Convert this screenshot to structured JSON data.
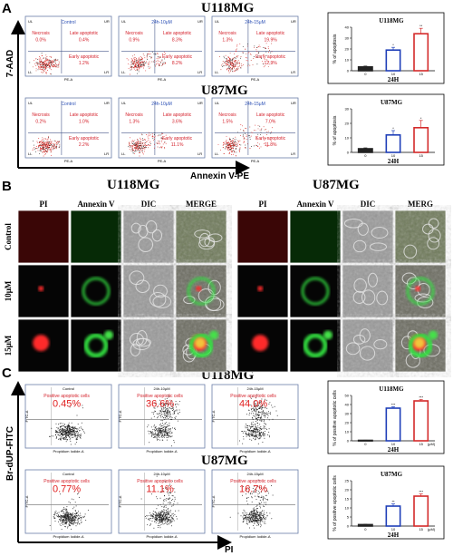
{
  "panels": {
    "A": {
      "letter": "A",
      "y_axis_title": "7-AAD",
      "x_axis_title": "Annexin V-PE",
      "rows": [
        {
          "title": "U118MG",
          "plots": [
            {
              "header": "Control",
              "ul": "UL",
              "ur": "UR",
              "ll": "LL",
              "lr": "LR",
              "necrosis_label": "Necrosis",
              "necrosis": "0.0%",
              "late_label": "Late apoptotic",
              "late": "0.4%",
              "early_label": "Early apoptotic",
              "early": "1.2%",
              "xlab": "PE-A"
            },
            {
              "header": "24h-10μM",
              "ul": "UL",
              "ur": "UR",
              "ll": "LL",
              "lr": "LR",
              "necrosis_label": "Necrosis",
              "necrosis": "0.9%",
              "late_label": "Late apoptotic",
              "late": "8.3%",
              "early_label": "Early apoptotic",
              "early": "8.2%",
              "xlab": "PE-A"
            },
            {
              "header": "24h-15μM",
              "ul": "UL",
              "ur": "UR",
              "ll": "LL",
              "lr": "LR",
              "necrosis_label": "Necrosis",
              "necrosis": "1.3%",
              "late_label": "Late apoptotic",
              "late": "19.9%",
              "early_label": "Early apoptotic",
              "early": "12.9%",
              "xlab": "PE-A"
            }
          ],
          "chart": {
            "title": "U118MG",
            "ylabel": "% of apoptosis",
            "xlabel": "24H",
            "categories": [
              "0",
              "10",
              "15"
            ],
            "values": [
              3.5,
              19,
              34
            ],
            "errors": [
              0.8,
              2.5,
              5
            ],
            "sig": [
              "",
              "*",
              "**"
            ],
            "ylim": [
              0,
              40
            ],
            "yticks": [
              "0",
              "10",
              "20",
              "30",
              "40"
            ],
            "colors": [
              "#222222",
              "#1f3fb8",
              "#d42a2a"
            ]
          }
        },
        {
          "title": "U87MG",
          "plots": [
            {
              "header": "Control",
              "ul": "UL",
              "ur": "UR",
              "ll": "LL",
              "lr": "LR",
              "necrosis_label": "Necrosis",
              "necrosis": "0.2%",
              "late_label": "Late apoptotic",
              "late": "1.0%",
              "early_label": "Early apoptotic",
              "early": "2.2%",
              "xlab": "PE-A"
            },
            {
              "header": "24h-10μM",
              "ul": "UL",
              "ur": "UR",
              "ll": "LL",
              "lr": "LR",
              "necrosis_label": "Necrosis",
              "necrosis": "1.3%",
              "late_label": "Late apoptotic",
              "late": "3.6%",
              "early_label": "Early apoptotic",
              "early": "11.1%",
              "xlab": "PE-A"
            },
            {
              "header": "24h-15μM",
              "ul": "UL",
              "ur": "UR",
              "ll": "LL",
              "lr": "LR",
              "necrosis_label": "Necrosis",
              "necrosis": "1.5%",
              "late_label": "Late apoptotic",
              "late": "7.0%",
              "early_label": "Early apoptotic",
              "early": "11.8%",
              "xlab": "PE-A"
            }
          ],
          "chart": {
            "title": "U87MG",
            "ylabel": "% of apoptosis",
            "xlabel": "24H",
            "categories": [
              "0",
              "10",
              "15"
            ],
            "values": [
              2.5,
              12,
              17
            ],
            "errors": [
              0.6,
              3,
              5
            ],
            "sig": [
              "",
              "*",
              "*"
            ],
            "ylim": [
              0,
              30
            ],
            "yticks": [
              "0",
              "10",
              "20",
              "30"
            ],
            "colors": [
              "#222222",
              "#1f3fb8",
              "#d42a2a"
            ]
          }
        }
      ]
    },
    "B": {
      "letter": "B",
      "groups": [
        {
          "title": "U118MG",
          "columns": [
            "PI",
            "Annexin V",
            "DIC",
            "MERGE"
          ]
        },
        {
          "title": "U87MG",
          "columns": [
            "PI",
            "Annexin V",
            "DIC",
            "MERG"
          ]
        }
      ],
      "rows": [
        "Control",
        "10μM",
        "15μM"
      ]
    },
    "C": {
      "letter": "C",
      "y_axis_title": "Br-dUP-FITC",
      "x_axis_title": "PI",
      "rows": [
        {
          "title": "U118MG",
          "plots": [
            {
              "header": "Control",
              "label": "Positive apoptotic cells",
              "pct": "0.45%",
              "ylab": "FITC-A",
              "xlab": "Propidium Iodide-A"
            },
            {
              "header": "24h-10μM",
              "label": "Positive apoptotic cells",
              "pct": "36.6%",
              "ylab": "FITC-A",
              "xlab": "Propidium Iodide-A"
            },
            {
              "header": "24h-15μM",
              "label": "Positive apoptotic cells",
              "pct": "44.0%",
              "ylab": "FITC-A",
              "xlab": "Propidium Iodide-A"
            }
          ],
          "chart": {
            "title": "U118MG",
            "ylabel": "% of positive apoptotic cells",
            "xlabel": "24H",
            "unit": "(μM)",
            "categories": [
              "0",
              "10",
              "15"
            ],
            "values": [
              0.5,
              36,
              44
            ],
            "errors": [
              0.2,
              1.5,
              1.5
            ],
            "sig": [
              "",
              "***",
              "***"
            ],
            "ylim": [
              0,
              50
            ],
            "yticks": [
              "0",
              "10",
              "20",
              "30",
              "40",
              "50"
            ],
            "colors": [
              "#222222",
              "#1f3fb8",
              "#d42a2a"
            ]
          }
        },
        {
          "title": "U87MG",
          "plots": [
            {
              "header": "Control",
              "label": "Positive apoptotic cells",
              "pct": "0.77%",
              "ylab": "FITC-A",
              "xlab": "Propidium Iodide-A"
            },
            {
              "header": "24h-10μM",
              "label": "Positive apoptotic cells",
              "pct": "11.1%",
              "ylab": "FITC-A",
              "xlab": "Propidium Iodide-A"
            },
            {
              "header": "24h-15μM",
              "label": "Positive apoptotic cells",
              "pct": "16.7%",
              "ylab": "FITC-A",
              "xlab": "Propidium Iodide-A"
            }
          ],
          "chart": {
            "title": "U87MG",
            "ylabel": "% of positive apoptotic cells",
            "xlabel": "24H",
            "unit": "(μM)",
            "categories": [
              "0",
              "10",
              "15"
            ],
            "values": [
              0.8,
              11,
              16.5
            ],
            "errors": [
              0.2,
              1.2,
              1.2
            ],
            "sig": [
              "",
              "**",
              "***"
            ],
            "ylim": [
              0,
              25
            ],
            "yticks": [
              "0",
              "5",
              "10",
              "15",
              "20",
              "25"
            ],
            "colors": [
              "#222222",
              "#1f3fb8",
              "#d42a2a"
            ]
          }
        }
      ]
    }
  }
}
